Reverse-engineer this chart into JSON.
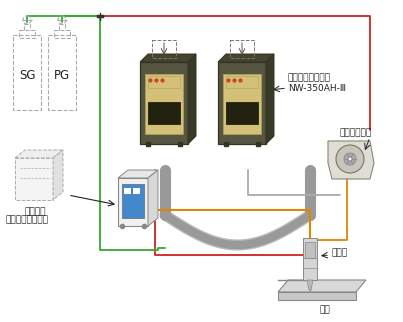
{
  "bg": "#ffffff",
  "red": "#cc2222",
  "green": "#33aa33",
  "orange": "#dd8800",
  "gray_cable": "#aaaaaa",
  "gray_dark": "#777777",
  "dark_body": "#555540",
  "beige_panel": "#d4c078",
  "blue_box": "#4488cc",
  "light_gray": "#cccccc",
  "mid_gray": "#999999",
  "dashed_color": "#aaaaaa",
  "black": "#222222",
  "white": "#ffffff",
  "label_sg": "SG",
  "label_pg": "PG",
  "label_cooling": "冷却装置",
  "label_hotwire": "ホットワイヤ電源",
  "label_plasma": "プラズマ溶接電源",
  "label_plasma2": "NW-350AH-Ⅲ",
  "label_feeder": "ワイヤ送給機",
  "label_torch": "トーチ",
  "label_base": "母材"
}
